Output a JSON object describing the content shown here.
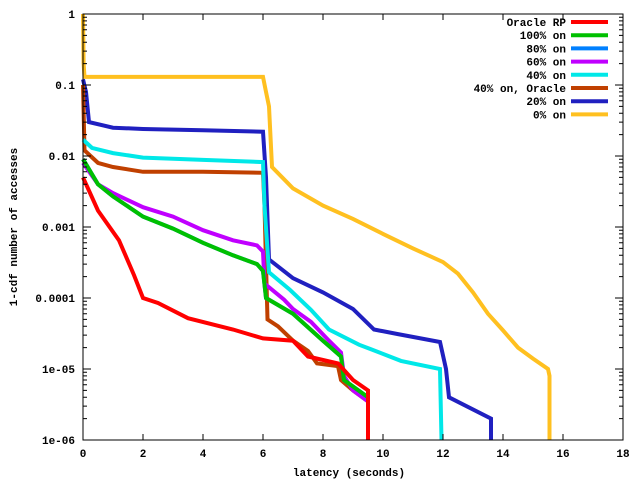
{
  "chart_data": {
    "type": "line",
    "title": "",
    "xlabel": "latency (seconds)",
    "ylabel": "1-cdf number of accesses",
    "xlim": [
      0,
      18
    ],
    "ylim": [
      1e-06,
      1
    ],
    "yscale": "log",
    "xticks": [
      "0",
      "2",
      "4",
      "6",
      "8",
      "10",
      "12",
      "14",
      "16",
      "18"
    ],
    "xtick_values": [
      0,
      2,
      4,
      6,
      8,
      10,
      12,
      14,
      16,
      18
    ],
    "yticks": [
      "1",
      "0.1",
      "0.01",
      "0.001",
      "0.0001",
      "1e-05",
      "1e-06"
    ],
    "ytick_values": [
      1,
      0.1,
      0.01,
      0.001,
      0.0001,
      1e-05,
      1e-06
    ],
    "legend_position": "top-right",
    "series": [
      {
        "name": "0% on",
        "color": "#ffc020",
        "x": [
          0,
          0.02,
          0.05,
          6,
          6.1,
          6.2,
          6.3,
          7,
          8,
          9,
          10,
          11,
          12,
          12.5,
          13,
          13.5,
          14,
          14.5,
          15,
          15.5,
          15.55,
          15.55
        ],
        "y": [
          1,
          0.2,
          0.13,
          0.13,
          0.08,
          0.05,
          0.007,
          0.0035,
          0.002,
          0.0013,
          0.0008,
          0.0005,
          0.00032,
          0.00022,
          0.00012,
          6e-05,
          3.5e-05,
          2e-05,
          1.4e-05,
          1e-05,
          8e-06,
          1e-06
        ]
      },
      {
        "name": "20% on",
        "color": "#2020c0",
        "x": [
          0,
          0.1,
          0.2,
          1,
          2,
          4,
          6,
          6.1,
          6.2,
          7,
          8,
          9,
          9.7,
          10.5,
          11.9,
          12.1,
          12.2,
          13.6,
          13.6
        ],
        "y": [
          0.12,
          0.08,
          0.03,
          0.025,
          0.024,
          0.023,
          0.022,
          0.005,
          0.00035,
          0.00019,
          0.00012,
          7e-05,
          3.6e-05,
          3.1e-05,
          2.4e-05,
          1e-05,
          4e-06,
          2e-06,
          1e-06
        ]
      },
      {
        "name": "40% on, Oracle",
        "color": "#c04000",
        "x": [
          0,
          0.05,
          0.5,
          1,
          2,
          4,
          6,
          6.05,
          6.1,
          6.15,
          6.5,
          7,
          7.5,
          7.8,
          8.5,
          8.6,
          9,
          9.5,
          9.5
        ],
        "y": [
          0.1,
          0.012,
          0.008,
          0.007,
          0.006,
          0.006,
          0.0058,
          0.002,
          0.0003,
          5e-05,
          4e-05,
          2.5e-05,
          1.8e-05,
          1.2e-05,
          1.1e-05,
          7e-06,
          5e-06,
          3.5e-06,
          1e-06
        ]
      },
      {
        "name": "40% on",
        "color": "#00e8e8",
        "x": [
          0,
          0.3,
          1,
          2,
          4,
          6,
          6.05,
          6.2,
          6.9,
          7.6,
          8.2,
          9.2,
          9.6,
          10.6,
          11.9,
          11.95
        ],
        "y": [
          0.017,
          0.013,
          0.011,
          0.0095,
          0.0088,
          0.0082,
          0.002,
          0.00023,
          0.00013,
          6.8e-05,
          3.6e-05,
          2.2e-05,
          1.9e-05,
          1.3e-05,
          1e-05,
          1e-06
        ]
      },
      {
        "name": "60% on",
        "color": "#c000ff",
        "x": [
          0,
          0.5,
          1,
          2,
          3,
          4,
          5,
          5.8,
          6,
          6.05,
          6.7,
          7,
          7.6,
          8.2,
          8.6,
          8.7,
          9,
          9.5,
          9.5
        ],
        "y": [
          0.008,
          0.004,
          0.003,
          0.0019,
          0.0014,
          0.0009,
          0.00065,
          0.00055,
          0.00045,
          0.00016,
          9.5e-05,
          7e-05,
          4.6e-05,
          2.5e-05,
          1.7e-05,
          8e-06,
          5e-06,
          3.5e-06,
          1e-06
        ]
      },
      {
        "name": "80% on",
        "color": "#0080ff",
        "x": [
          0,
          0.5,
          1,
          2,
          3,
          4,
          5,
          5.8,
          6,
          6.1,
          7,
          8,
          8.6,
          8.7,
          9.5,
          9.5
        ],
        "y": [
          0.009,
          0.004,
          0.0027,
          0.0014,
          0.00095,
          0.0006,
          0.0004,
          0.0003,
          0.00024,
          0.0001,
          6e-05,
          2.5e-05,
          1.5e-05,
          7e-06,
          4e-06,
          1e-06
        ]
      },
      {
        "name": "100% on",
        "color": "#00c000",
        "x": [
          0,
          0.5,
          1,
          2,
          3,
          4,
          5,
          5.8,
          6,
          6.1,
          7,
          8,
          8.6,
          8.7,
          9.5,
          9.5
        ],
        "y": [
          0.009,
          0.004,
          0.0027,
          0.0014,
          0.00095,
          0.0006,
          0.0004,
          0.0003,
          0.00024,
          0.0001,
          6e-05,
          2.5e-05,
          1.5e-05,
          7e-06,
          4e-06,
          1e-06
        ]
      },
      {
        "name": "Oracle RP",
        "color": "#ff0000",
        "x": [
          0,
          0.5,
          1.2,
          1.7,
          2,
          2.5,
          3.5,
          5,
          6,
          7,
          7.5,
          8.5,
          9,
          9.5,
          9.5
        ],
        "y": [
          0.005,
          0.0017,
          0.00065,
          0.00021,
          0.0001,
          8.5e-05,
          5.2e-05,
          3.6e-05,
          2.7e-05,
          2.5e-05,
          1.5e-05,
          1.2e-05,
          7e-06,
          5e-06,
          1e-06
        ]
      }
    ],
    "legend_order": [
      "Oracle RP",
      "100% on",
      "80% on",
      "60% on",
      "40% on",
      "40% on, Oracle",
      "20% on",
      "0% on"
    ]
  }
}
